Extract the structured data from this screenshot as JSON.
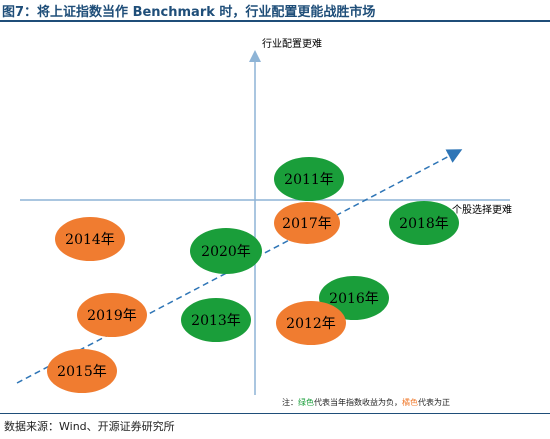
{
  "title": "图7：将上证指数当作 Benchmark 时，行业配置更能战胜市场",
  "axis": {
    "y_label": "行业配置更难",
    "x_label": "个股选择更难"
  },
  "colors": {
    "green": "#1a9e3a",
    "orange": "#f07c30",
    "axis": "#8eb4d6",
    "arrow": "#2e75b6",
    "title": "#1f4e79"
  },
  "years": [
    {
      "label": "2011年",
      "color": "green"
    },
    {
      "label": "2017年",
      "color": "orange"
    },
    {
      "label": "2018年",
      "color": "green"
    },
    {
      "label": "2014年",
      "color": "orange"
    },
    {
      "label": "2020年",
      "color": "green"
    },
    {
      "label": "2016年",
      "color": "green"
    },
    {
      "label": "2019年",
      "color": "orange"
    },
    {
      "label": "2013年",
      "color": "green"
    },
    {
      "label": "2012年",
      "color": "orange"
    },
    {
      "label": "2015年",
      "color": "orange"
    }
  ],
  "note": {
    "prefix": "注：",
    "green_text": "绿色",
    "mid": "代表当年指数收益为负，",
    "orange_text": "橘色",
    "suffix": "代表为正"
  },
  "source": "数据来源：Wind、开源证券研究所"
}
